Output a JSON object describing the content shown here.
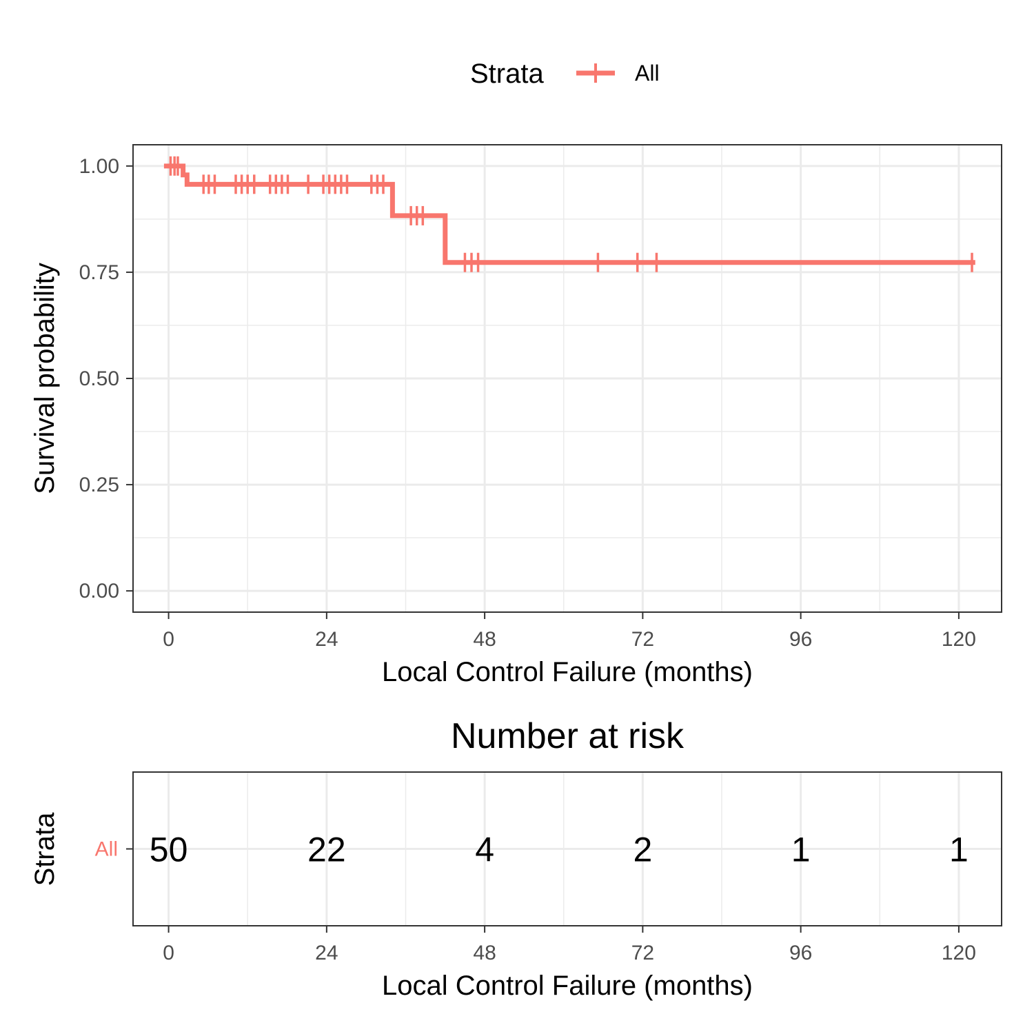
{
  "legend": {
    "title": "Strata",
    "label": "All"
  },
  "colors": {
    "series": "#F8766D",
    "grid": "#ebebeb",
    "panel_border": "#333333",
    "tick_text": "#4d4d4d"
  },
  "chart_data": [
    {
      "type": "line",
      "subtype": "kaplan-meier step",
      "xlabel": "Local Control Failure (months)",
      "ylabel": "Survival probability",
      "xlim": [
        -5.4,
        126.5
      ],
      "ylim": [
        -0.05,
        1.05
      ],
      "x_ticks": [
        0,
        24,
        48,
        72,
        96,
        120
      ],
      "x_tick_labels": [
        "0",
        "24",
        "48",
        "72",
        "96",
        "120"
      ],
      "y_ticks": [
        0,
        0.25,
        0.5,
        0.75,
        1
      ],
      "y_tick_labels": [
        "0.00",
        "0.25",
        "0.50",
        "0.75",
        "1.00"
      ],
      "grid": true,
      "legend_position": "top",
      "series": [
        {
          "name": "All",
          "steps": [
            {
              "x": 0,
              "y": 1.0
            },
            {
              "x": 2.2,
              "y": 0.979
            },
            {
              "x": 2.8,
              "y": 0.957
            },
            {
              "x": 34.0,
              "y": 0.883
            },
            {
              "x": 42.0,
              "y": 0.773
            },
            {
              "x": 122.5,
              "y": 0.773
            }
          ],
          "censored": [
            {
              "x": 0.3,
              "y": 1.0
            },
            {
              "x": 0.9,
              "y": 1.0
            },
            {
              "x": 1.4,
              "y": 1.0
            },
            {
              "x": 5.3,
              "y": 0.957
            },
            {
              "x": 6.1,
              "y": 0.957
            },
            {
              "x": 7.0,
              "y": 0.957
            },
            {
              "x": 10.2,
              "y": 0.957
            },
            {
              "x": 11.1,
              "y": 0.957
            },
            {
              "x": 12.0,
              "y": 0.957
            },
            {
              "x": 13.0,
              "y": 0.957
            },
            {
              "x": 15.4,
              "y": 0.957
            },
            {
              "x": 16.3,
              "y": 0.957
            },
            {
              "x": 17.2,
              "y": 0.957
            },
            {
              "x": 18.1,
              "y": 0.957
            },
            {
              "x": 21.2,
              "y": 0.957
            },
            {
              "x": 23.5,
              "y": 0.957
            },
            {
              "x": 24.4,
              "y": 0.957
            },
            {
              "x": 25.3,
              "y": 0.957
            },
            {
              "x": 26.2,
              "y": 0.957
            },
            {
              "x": 27.1,
              "y": 0.957
            },
            {
              "x": 30.8,
              "y": 0.957
            },
            {
              "x": 31.7,
              "y": 0.957
            },
            {
              "x": 32.6,
              "y": 0.957
            },
            {
              "x": 36.8,
              "y": 0.883
            },
            {
              "x": 37.7,
              "y": 0.883
            },
            {
              "x": 38.6,
              "y": 0.883
            },
            {
              "x": 45.0,
              "y": 0.773
            },
            {
              "x": 46.0,
              "y": 0.773
            },
            {
              "x": 47.0,
              "y": 0.773
            },
            {
              "x": 65.2,
              "y": 0.773
            },
            {
              "x": 71.2,
              "y": 0.773
            },
            {
              "x": 74.1,
              "y": 0.773
            },
            {
              "x": 122.0,
              "y": 0.773
            }
          ]
        }
      ]
    },
    {
      "type": "table",
      "title": "Number at risk",
      "xlabel": "Local Control Failure (months)",
      "ylabel": "Strata",
      "xlim": [
        -5.4,
        126.5
      ],
      "x_ticks": [
        0,
        24,
        48,
        72,
        96,
        120
      ],
      "x_tick_labels": [
        "0",
        "24",
        "48",
        "72",
        "96",
        "120"
      ],
      "rows": [
        {
          "label": "All",
          "values": [
            {
              "x": 0,
              "n": "50"
            },
            {
              "x": 24,
              "n": "22"
            },
            {
              "x": 48,
              "n": "4"
            },
            {
              "x": 72,
              "n": "2"
            },
            {
              "x": 96,
              "n": "1"
            },
            {
              "x": 120,
              "n": "1"
            }
          ]
        }
      ]
    }
  ]
}
